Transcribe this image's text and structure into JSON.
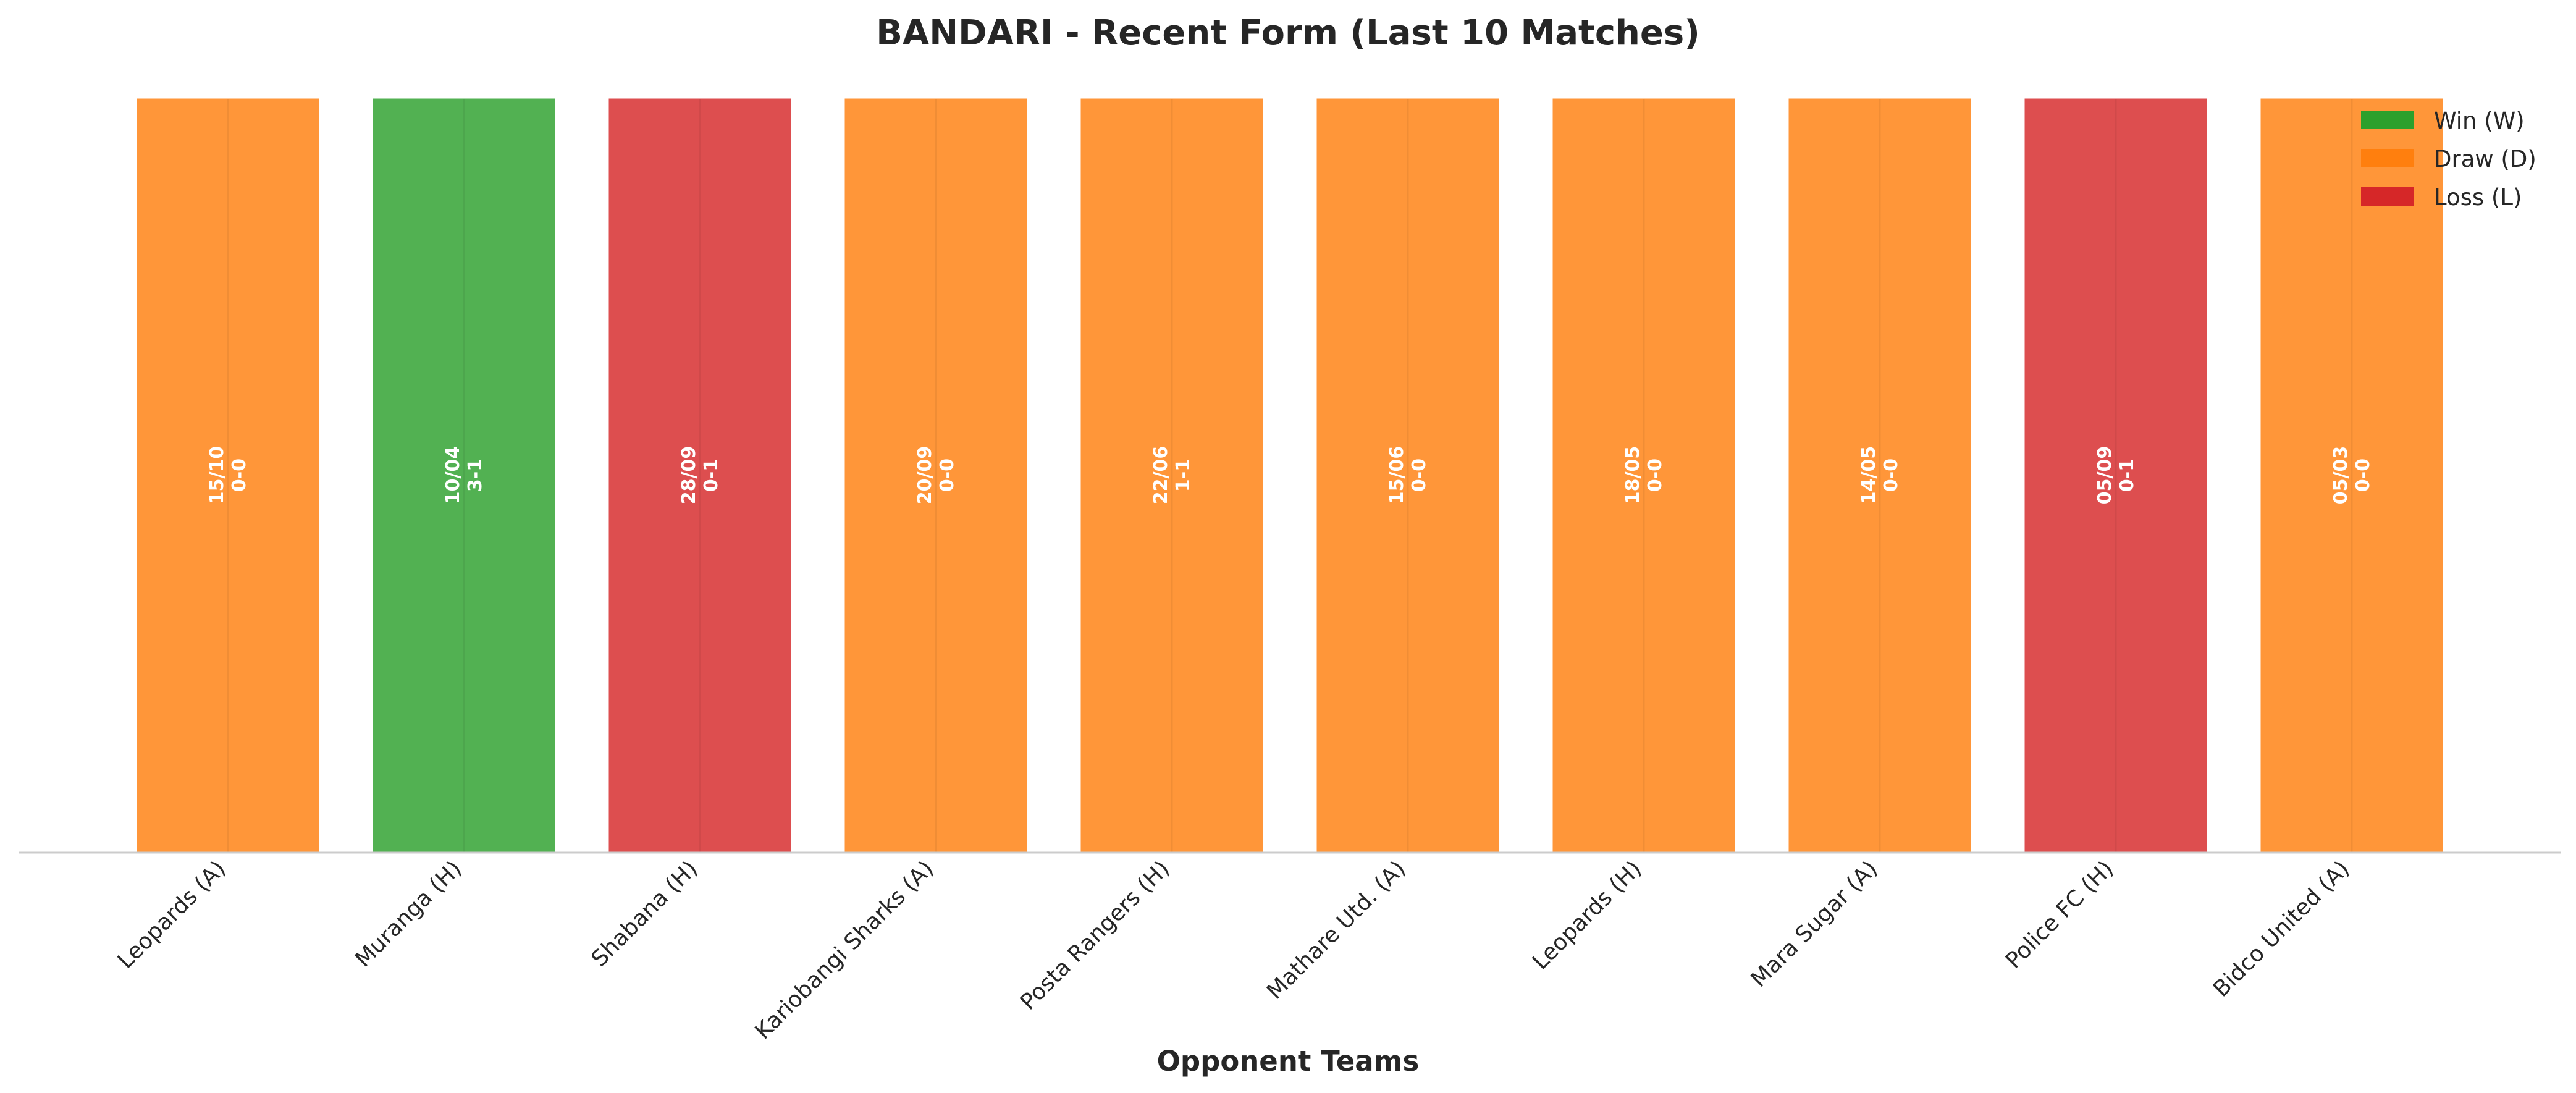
{
  "chart_data": {
    "type": "bar",
    "title": "BANDARI - Recent Form (Last 10 Matches)",
    "xlabel": "Opponent Teams",
    "ylabel": "",
    "ylim": [
      0,
      1
    ],
    "grid": false,
    "legend_position": "top-right",
    "categories": [
      "Leopards (A)",
      "Muranga (H)",
      "Shabana (H)",
      "Kariobangi Sharks (A)",
      "Posta Rangers (H)",
      "Mathare Utd. (A)",
      "Leopards (H)",
      "Mara Sugar (A)",
      "Police FC (H)",
      "Bidco United (A)"
    ],
    "values": [
      1,
      1,
      1,
      1,
      1,
      1,
      1,
      1,
      1,
      1
    ],
    "results": [
      "D",
      "W",
      "L",
      "D",
      "D",
      "D",
      "D",
      "D",
      "L",
      "D"
    ],
    "dates": [
      "15/10",
      "10/04",
      "28/09",
      "20/09",
      "22/06",
      "15/06",
      "18/05",
      "14/05",
      "05/09",
      "05/03"
    ],
    "scores": [
      "0-0",
      "3-1",
      "0-1",
      "0-0",
      "1-1",
      "0-0",
      "0-0",
      "0-0",
      "0-1",
      "0-0"
    ],
    "colors": {
      "W": "#2ca02c",
      "D": "#ff7f0e",
      "L": "#d62728"
    },
    "legend": [
      {
        "key": "W",
        "label": "Win (W)"
      },
      {
        "key": "D",
        "label": "Draw (D)"
      },
      {
        "key": "L",
        "label": "Loss (L)"
      }
    ]
  }
}
